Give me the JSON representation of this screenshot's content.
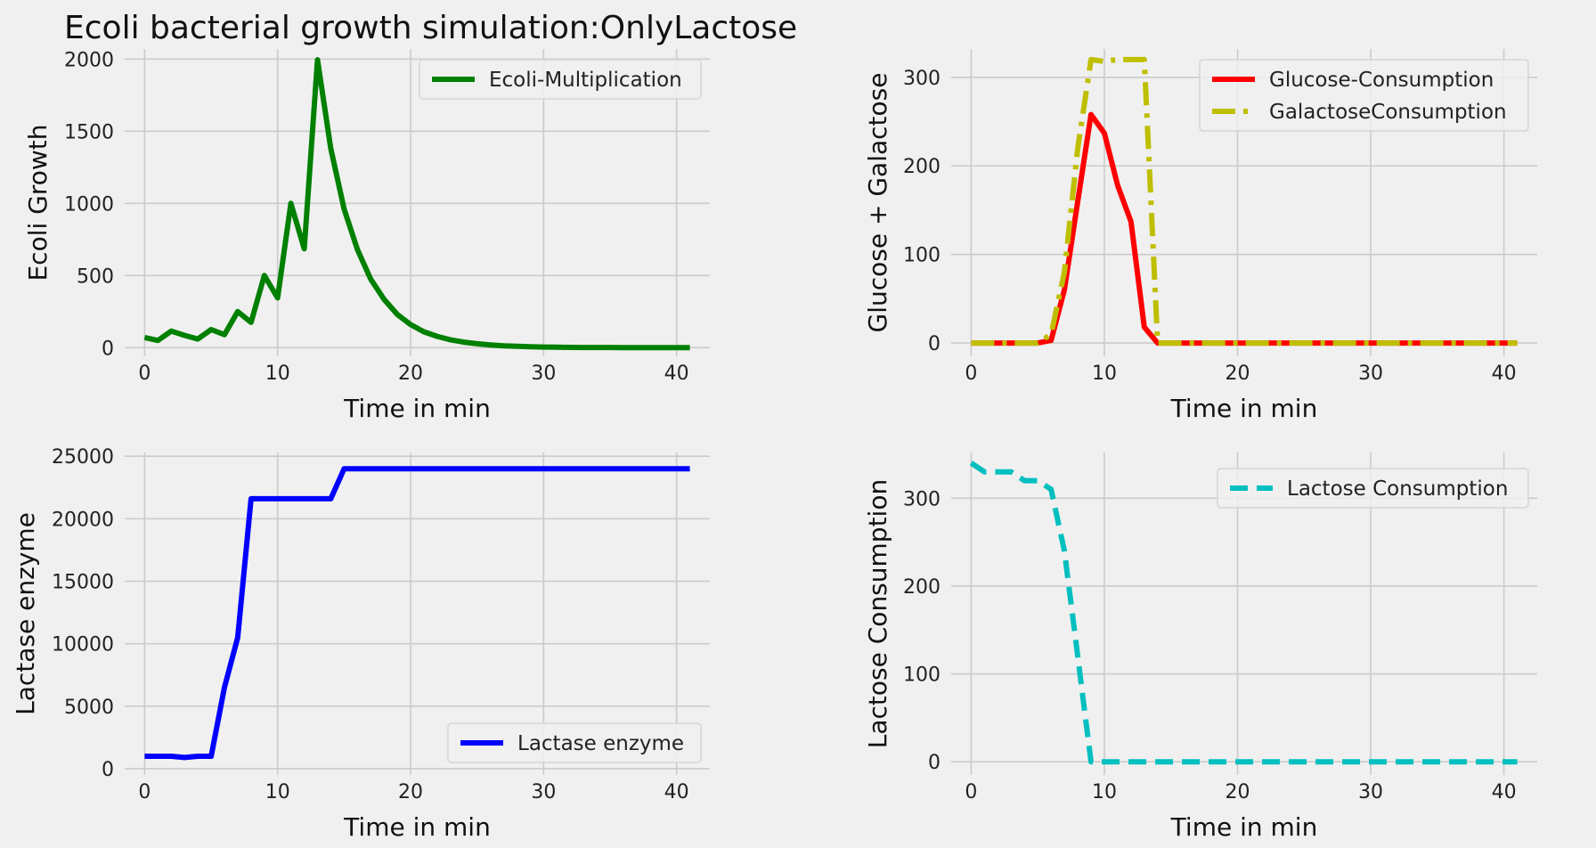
{
  "figure": {
    "background": "#f0f0f0",
    "grid_color": "#cbcbcb"
  },
  "chart_data": [
    {
      "type": "line",
      "title": "Ecoli bacterial growth simulation:OnlyLactose",
      "xlabel": "Time in min",
      "ylabel": "Ecoli Growth",
      "xlim": [
        -1.5,
        42.5
      ],
      "ylim": [
        -60,
        2070
      ],
      "xticks": [
        0,
        10,
        20,
        30,
        40
      ],
      "yticks": [
        0,
        500,
        1000,
        1500,
        2000
      ],
      "grid": true,
      "legend_placement": "upper right",
      "series": [
        {
          "name": "Ecoli-Multiplication",
          "color": "#008000",
          "dash": "solid",
          "x": [
            0,
            1,
            2,
            3,
            4,
            5,
            6,
            7,
            8,
            9,
            10,
            11,
            12,
            13,
            14,
            15,
            16,
            17,
            18,
            19,
            20,
            21,
            22,
            23,
            24,
            25,
            26,
            27,
            28,
            29,
            30,
            31,
            32,
            33,
            34,
            35,
            36,
            37,
            38,
            39,
            40,
            41
          ],
          "y": [
            70,
            50,
            115,
            85,
            60,
            125,
            90,
            250,
            175,
            500,
            345,
            1000,
            685,
            1995,
            1380,
            960,
            680,
            475,
            335,
            230,
            160,
            110,
            78,
            54,
            38,
            27,
            19,
            13,
            9,
            6,
            4,
            3,
            2,
            1,
            1,
            1,
            0,
            0,
            0,
            0,
            0,
            0
          ]
        }
      ]
    },
    {
      "type": "line",
      "title": "",
      "xlabel": "Time in min",
      "ylabel": "Glucose + Galactose",
      "xlim": [
        -1.5,
        42.5
      ],
      "ylim": [
        -15,
        332
      ],
      "xticks": [
        0,
        10,
        20,
        30,
        40
      ],
      "yticks": [
        0,
        100,
        200,
        300
      ],
      "grid": true,
      "legend_placement": "upper right",
      "series": [
        {
          "name": "Glucose-Consumption",
          "color": "#ff0000",
          "dash": "solid",
          "x": [
            0,
            1,
            2,
            3,
            4,
            5,
            6,
            7,
            8,
            9,
            10,
            11,
            12,
            13,
            14,
            15,
            16,
            17,
            18,
            19,
            20,
            21,
            22,
            23,
            24,
            25,
            26,
            27,
            28,
            29,
            30,
            31,
            32,
            33,
            34,
            35,
            36,
            37,
            38,
            39,
            40,
            41
          ],
          "y": [
            0,
            0,
            0,
            0,
            0,
            0,
            3,
            60,
            160,
            258,
            237,
            178,
            137,
            18,
            0,
            0,
            0,
            0,
            0,
            0,
            0,
            0,
            0,
            0,
            0,
            0,
            0,
            0,
            0,
            0,
            0,
            0,
            0,
            0,
            0,
            0,
            0,
            0,
            0,
            0,
            0,
            0
          ]
        },
        {
          "name": "GalactoseConsumption",
          "color": "#bfbf00",
          "dash": "dashdot",
          "x": [
            0,
            1,
            2,
            3,
            4,
            5,
            6,
            7,
            8,
            9,
            10,
            11,
            12,
            13,
            14,
            15,
            16,
            17,
            18,
            19,
            20,
            21,
            22,
            23,
            24,
            25,
            26,
            27,
            28,
            29,
            30,
            31,
            32,
            33,
            34,
            35,
            36,
            37,
            38,
            39,
            40,
            41
          ],
          "y": [
            0,
            0,
            0,
            0,
            0,
            0,
            10,
            80,
            220,
            320,
            318,
            320,
            320,
            320,
            0,
            0,
            0,
            0,
            0,
            0,
            0,
            0,
            0,
            0,
            0,
            0,
            0,
            0,
            0,
            0,
            0,
            0,
            0,
            0,
            0,
            0,
            0,
            0,
            0,
            0,
            0,
            0
          ]
        }
      ]
    },
    {
      "type": "line",
      "title": "",
      "xlabel": "Time in min",
      "ylabel": "Lactase enzyme",
      "xlim": [
        -1.5,
        42.5
      ],
      "ylim": [
        -500,
        25300
      ],
      "xticks": [
        0,
        10,
        20,
        30,
        40
      ],
      "yticks": [
        0,
        5000,
        10000,
        15000,
        20000,
        25000
      ],
      "grid": true,
      "legend_placement": "lower right",
      "series": [
        {
          "name": "Lactase enzyme",
          "color": "#0000ff",
          "dash": "solid",
          "x": [
            0,
            1,
            2,
            3,
            4,
            5,
            6,
            7,
            8,
            9,
            10,
            11,
            12,
            13,
            14,
            15,
            16,
            17,
            18,
            19,
            20,
            21,
            22,
            23,
            24,
            25,
            26,
            27,
            28,
            29,
            30,
            31,
            32,
            33,
            34,
            35,
            36,
            37,
            38,
            39,
            40,
            41
          ],
          "y": [
            1000,
            1000,
            1000,
            900,
            1000,
            1000,
            6500,
            10500,
            21600,
            21600,
            21600,
            21600,
            21600,
            21600,
            21600,
            24000,
            24000,
            24000,
            24000,
            24000,
            24000,
            24000,
            24000,
            24000,
            24000,
            24000,
            24000,
            24000,
            24000,
            24000,
            24000,
            24000,
            24000,
            24000,
            24000,
            24000,
            24000,
            24000,
            24000,
            24000,
            24000,
            24000
          ]
        }
      ]
    },
    {
      "type": "line",
      "title": "",
      "xlabel": "Time in min",
      "ylabel": "Lactose Consumption",
      "xlim": [
        -1.5,
        42.5
      ],
      "ylim": [
        -15,
        352
      ],
      "xticks": [
        0,
        10,
        20,
        30,
        40
      ],
      "yticks": [
        0,
        100,
        200,
        300
      ],
      "grid": true,
      "legend_placement": "upper right",
      "series": [
        {
          "name": "Lactose Consumption",
          "color": "#00bfbf",
          "dash": "dashed",
          "x": [
            0,
            1,
            2,
            3,
            4,
            5,
            6,
            7,
            8,
            9,
            10,
            11,
            12,
            13,
            14,
            15,
            16,
            17,
            18,
            19,
            20,
            21,
            22,
            23,
            24,
            25,
            26,
            27,
            28,
            29,
            30,
            31,
            32,
            33,
            34,
            35,
            36,
            37,
            38,
            39,
            40,
            41
          ],
          "y": [
            340,
            330,
            330,
            330,
            320,
            320,
            310,
            240,
            120,
            0,
            0,
            0,
            0,
            0,
            0,
            0,
            0,
            0,
            0,
            0,
            0,
            0,
            0,
            0,
            0,
            0,
            0,
            0,
            0,
            0,
            0,
            0,
            0,
            0,
            0,
            0,
            0,
            0,
            0,
            0,
            0,
            0
          ]
        }
      ]
    }
  ]
}
